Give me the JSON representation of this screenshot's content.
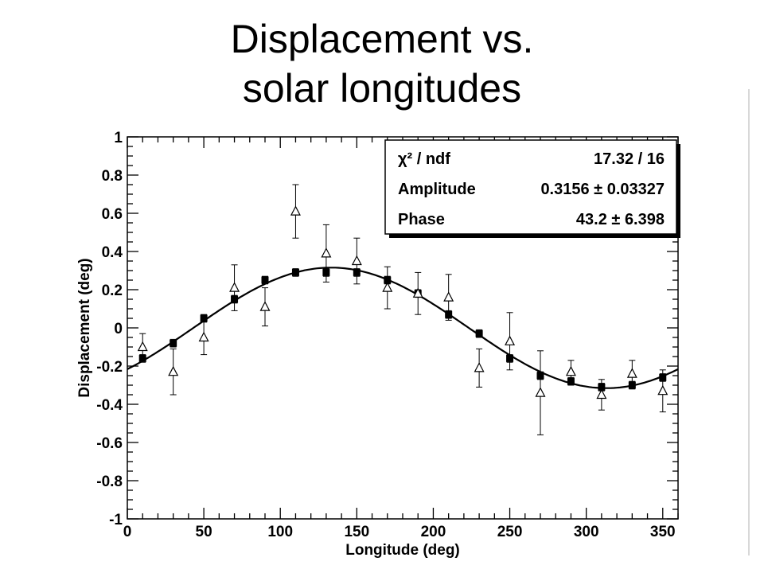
{
  "slide": {
    "title_line1": "Displacement vs.",
    "title_line2": "solar longitudes"
  },
  "stats": {
    "chi2_label": "χ² / ndf",
    "chi2_value": "17.32 / 16",
    "amplitude_label": "Amplitude",
    "amplitude_value": "0.3156 ± 0.03327",
    "phase_label": "Phase",
    "phase_value": "43.2 ± 6.398"
  },
  "chart_data": {
    "type": "scatter",
    "xlabel": "Longitude (deg)",
    "ylabel": "Displacement (deg)",
    "xlim": [
      0,
      360
    ],
    "ylim": [
      -1,
      1
    ],
    "x_ticks": [
      0,
      50,
      100,
      150,
      200,
      250,
      300,
      350
    ],
    "y_ticks": [
      1,
      0.8,
      0.6,
      0.4,
      0.2,
      0,
      -0.2,
      -0.4,
      -0.6,
      -0.8,
      -1
    ],
    "x_tick_labels": [
      "0",
      "50",
      "100",
      "150",
      "200",
      "250",
      "300",
      "350"
    ],
    "y_tick_labels": [
      "1",
      "0.8",
      "0.6",
      "0.4",
      "0.2",
      "0",
      "-0.2",
      "-0.4",
      "-0.6",
      "-0.8",
      "-1"
    ],
    "grid": false,
    "series": [
      {
        "marker": "filled-square",
        "x": [
          10,
          30,
          50,
          70,
          90,
          110,
          130,
          150,
          170,
          190,
          210,
          230,
          250,
          270,
          290,
          310,
          330,
          350
        ],
        "y": [
          -0.16,
          -0.08,
          0.05,
          0.15,
          0.25,
          0.29,
          0.29,
          0.29,
          0.25,
          0.18,
          0.07,
          -0.03,
          -0.16,
          -0.25,
          -0.28,
          -0.31,
          -0.3,
          -0.26
        ],
        "err": [
          0.02,
          0.02,
          0.02,
          0.02,
          0.02,
          0.02,
          0.02,
          0.02,
          0.02,
          0.02,
          0.02,
          0.02,
          0.02,
          0.02,
          0.02,
          0.02,
          0.02,
          0.02
        ]
      },
      {
        "marker": "open-triangle",
        "x": [
          10,
          30,
          50,
          70,
          90,
          110,
          130,
          150,
          170,
          190,
          210,
          230,
          250,
          270,
          290,
          310,
          330,
          350
        ],
        "y": [
          -0.1,
          -0.23,
          -0.05,
          0.21,
          0.11,
          0.61,
          0.39,
          0.35,
          0.21,
          0.18,
          0.16,
          -0.21,
          -0.07,
          -0.34,
          -0.23,
          -0.35,
          -0.24,
          -0.33
        ],
        "err": [
          0.07,
          0.12,
          0.09,
          0.12,
          0.1,
          0.14,
          0.15,
          0.12,
          0.11,
          0.11,
          0.12,
          0.1,
          0.15,
          0.22,
          0.06,
          0.08,
          0.07,
          0.11
        ]
      }
    ],
    "fit": {
      "type": "sine",
      "amplitude": 0.3156,
      "phase": 43.2
    }
  }
}
